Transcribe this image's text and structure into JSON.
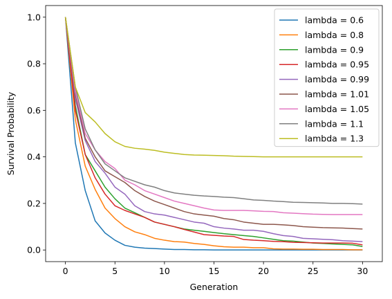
{
  "chart_data": {
    "type": "line",
    "title": "",
    "xlabel": "Generation",
    "ylabel": "Survival Probability",
    "xlim": [
      -2,
      32
    ],
    "ylim": [
      -0.05,
      1.05
    ],
    "xticks": [
      0,
      5,
      10,
      15,
      20,
      25,
      30
    ],
    "yticks": [
      0.0,
      0.2,
      0.4,
      0.6,
      0.8,
      1.0
    ],
    "xtick_labels": [
      "0",
      "5",
      "10",
      "15",
      "20",
      "25",
      "30"
    ],
    "ytick_labels": [
      "0.0",
      "0.2",
      "0.4",
      "0.6",
      "0.8",
      "1.0"
    ],
    "grid": false,
    "legend_position": "top-right",
    "x": [
      0,
      1,
      2,
      3,
      4,
      5,
      6,
      7,
      8,
      9,
      10,
      11,
      12,
      13,
      14,
      15,
      16,
      17,
      18,
      19,
      20,
      21,
      22,
      23,
      24,
      25,
      26,
      27,
      28,
      29,
      30
    ],
    "series": [
      {
        "name": "lambda = 0.6",
        "color": "#1f77b4",
        "values": [
          1.0,
          0.46,
          0.255,
          0.125,
          0.073,
          0.042,
          0.02,
          0.012,
          0.008,
          0.006,
          0.004,
          0.002,
          0.002,
          0.001,
          0.001,
          0.0,
          0.0,
          0.0,
          0.0,
          0.0,
          0.0,
          0.0,
          0.0,
          0.0,
          0.0,
          0.0,
          0.0,
          0.0,
          0.0,
          0.0,
          0.0
        ]
      },
      {
        "name": "lambda = 0.8",
        "color": "#ff7f0e",
        "values": [
          1.0,
          0.56,
          0.36,
          0.26,
          0.18,
          0.135,
          0.1,
          0.078,
          0.066,
          0.05,
          0.042,
          0.036,
          0.034,
          0.028,
          0.024,
          0.018,
          0.014,
          0.012,
          0.012,
          0.01,
          0.01,
          0.005,
          0.004,
          0.004,
          0.003,
          0.003,
          0.002,
          0.002,
          0.002,
          0.001,
          0.001
        ]
      },
      {
        "name": "lambda = 0.9",
        "color": "#2ca02c",
        "values": [
          1.0,
          0.62,
          0.41,
          0.34,
          0.27,
          0.22,
          0.18,
          0.16,
          0.14,
          0.12,
          0.11,
          0.1,
          0.09,
          0.085,
          0.08,
          0.075,
          0.07,
          0.066,
          0.062,
          0.058,
          0.052,
          0.046,
          0.04,
          0.038,
          0.034,
          0.03,
          0.028,
          0.026,
          0.024,
          0.022,
          0.015
        ]
      },
      {
        "name": "lambda = 0.95",
        "color": "#d62728",
        "values": [
          1.0,
          0.6,
          0.41,
          0.31,
          0.24,
          0.19,
          0.17,
          0.155,
          0.14,
          0.12,
          0.11,
          0.1,
          0.088,
          0.077,
          0.066,
          0.063,
          0.06,
          0.058,
          0.045,
          0.042,
          0.04,
          0.037,
          0.036,
          0.033,
          0.032,
          0.031,
          0.03,
          0.03,
          0.03,
          0.029,
          0.022
        ]
      },
      {
        "name": "lambda = 0.99",
        "color": "#9467bd",
        "values": [
          1.0,
          0.65,
          0.47,
          0.38,
          0.33,
          0.27,
          0.24,
          0.19,
          0.165,
          0.155,
          0.15,
          0.14,
          0.13,
          0.12,
          0.115,
          0.1,
          0.094,
          0.09,
          0.085,
          0.085,
          0.08,
          0.07,
          0.062,
          0.058,
          0.05,
          0.048,
          0.046,
          0.044,
          0.04,
          0.038,
          0.036
        ]
      },
      {
        "name": "lambda = 1.01",
        "color": "#8c564b",
        "values": [
          1.0,
          0.67,
          0.48,
          0.4,
          0.34,
          0.315,
          0.29,
          0.255,
          0.23,
          0.21,
          0.195,
          0.18,
          0.165,
          0.155,
          0.15,
          0.145,
          0.135,
          0.13,
          0.12,
          0.115,
          0.11,
          0.11,
          0.108,
          0.105,
          0.1,
          0.098,
          0.096,
          0.095,
          0.094,
          0.092,
          0.09
        ]
      },
      {
        "name": "lambda = 1.05",
        "color": "#e377c2",
        "values": [
          1.0,
          0.68,
          0.5,
          0.43,
          0.38,
          0.35,
          0.3,
          0.28,
          0.255,
          0.24,
          0.225,
          0.21,
          0.2,
          0.19,
          0.18,
          0.172,
          0.17,
          0.17,
          0.17,
          0.168,
          0.166,
          0.165,
          0.16,
          0.158,
          0.156,
          0.154,
          0.153,
          0.152,
          0.152,
          0.152,
          0.152
        ]
      },
      {
        "name": "lambda = 1.1",
        "color": "#7f7f7f",
        "values": [
          1.0,
          0.7,
          0.52,
          0.43,
          0.37,
          0.34,
          0.31,
          0.295,
          0.28,
          0.27,
          0.255,
          0.245,
          0.24,
          0.235,
          0.232,
          0.23,
          0.227,
          0.225,
          0.22,
          0.215,
          0.213,
          0.21,
          0.208,
          0.205,
          0.204,
          0.203,
          0.202,
          0.2,
          0.2,
          0.199,
          0.197
        ]
      },
      {
        "name": "lambda = 1.3",
        "color": "#bcbd22",
        "values": [
          1.0,
          0.7,
          0.59,
          0.55,
          0.5,
          0.465,
          0.445,
          0.437,
          0.433,
          0.428,
          0.42,
          0.415,
          0.41,
          0.408,
          0.407,
          0.406,
          0.405,
          0.403,
          0.402,
          0.401,
          0.4,
          0.4,
          0.4,
          0.4,
          0.4,
          0.4,
          0.4,
          0.4,
          0.4,
          0.4,
          0.4
        ]
      }
    ]
  }
}
